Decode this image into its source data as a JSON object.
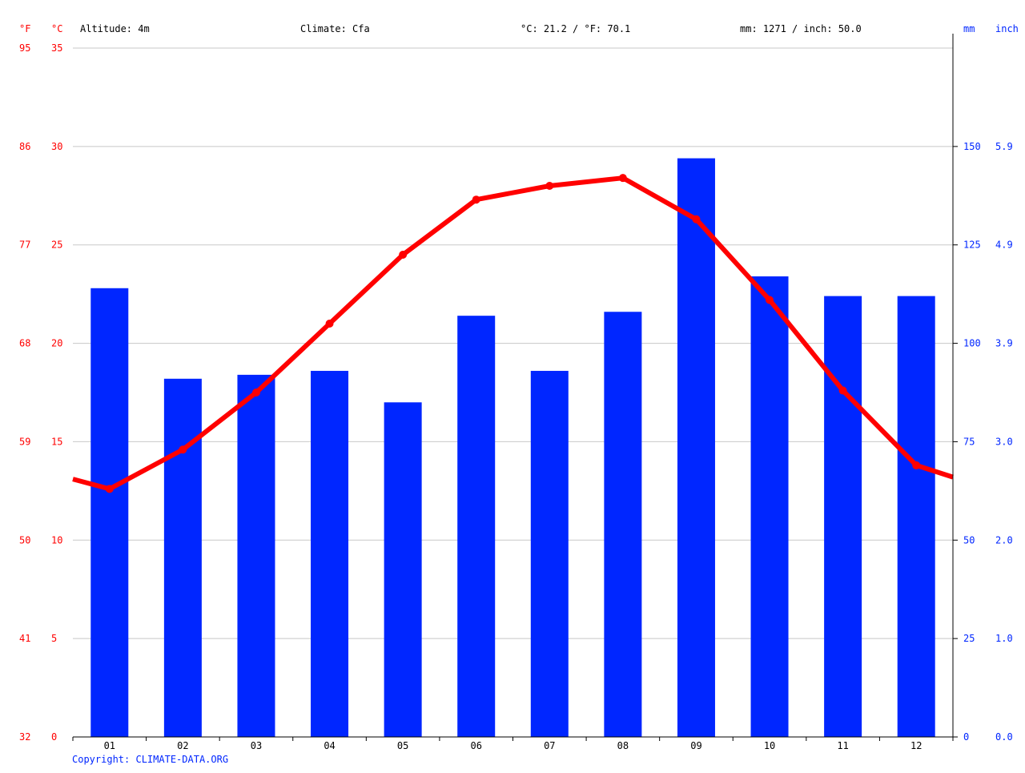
{
  "header": {
    "unit_f": "°F",
    "unit_c": "°C",
    "altitude": "Altitude: 4m",
    "climate": "Climate: Cfa",
    "temp_summary": "°C: 21.2 / °F: 70.1",
    "precip_summary": "mm: 1271 / inch: 50.0",
    "unit_mm": "mm",
    "unit_inch": "inch"
  },
  "copyright": "Copyright: CLIMATE-DATA.ORG",
  "colors": {
    "bars": "#0026ff",
    "line": "#ff0000",
    "temp_axis": "#ff0000",
    "precip_axis": "#0026ff",
    "grid": "#c8c8c8"
  },
  "chart_data": {
    "type": "bar",
    "categories": [
      "01",
      "02",
      "03",
      "04",
      "05",
      "06",
      "07",
      "08",
      "09",
      "10",
      "11",
      "12"
    ],
    "series": [
      {
        "type": "bar",
        "axis": "precipitation",
        "values": [
          114,
          91,
          92,
          93,
          85,
          107,
          93,
          108,
          147,
          117,
          112,
          112
        ]
      },
      {
        "type": "line",
        "axis": "temperature",
        "values": [
          12.6,
          14.6,
          17.5,
          21.0,
          24.5,
          27.3,
          28.0,
          28.4,
          26.3,
          22.2,
          17.6,
          13.8
        ],
        "edge_left": 13.1,
        "edge_right": 13.2
      }
    ],
    "axes": {
      "celsius": {
        "ylim": [
          0,
          35
        ],
        "ticks": [
          0,
          5,
          10,
          15,
          20,
          25,
          30,
          35
        ]
      },
      "fahrenheit": {
        "ticks": [
          32,
          41,
          50,
          59,
          68,
          77,
          86,
          95
        ]
      },
      "mm": {
        "ylim": [
          0,
          175
        ],
        "ticks": [
          0,
          25,
          50,
          75,
          100,
          125,
          150
        ]
      },
      "inch": {
        "ticks": [
          "0.0",
          "1.0",
          "2.0",
          "3.0",
          "3.9",
          "4.9",
          "5.9"
        ]
      }
    },
    "grid": true
  }
}
